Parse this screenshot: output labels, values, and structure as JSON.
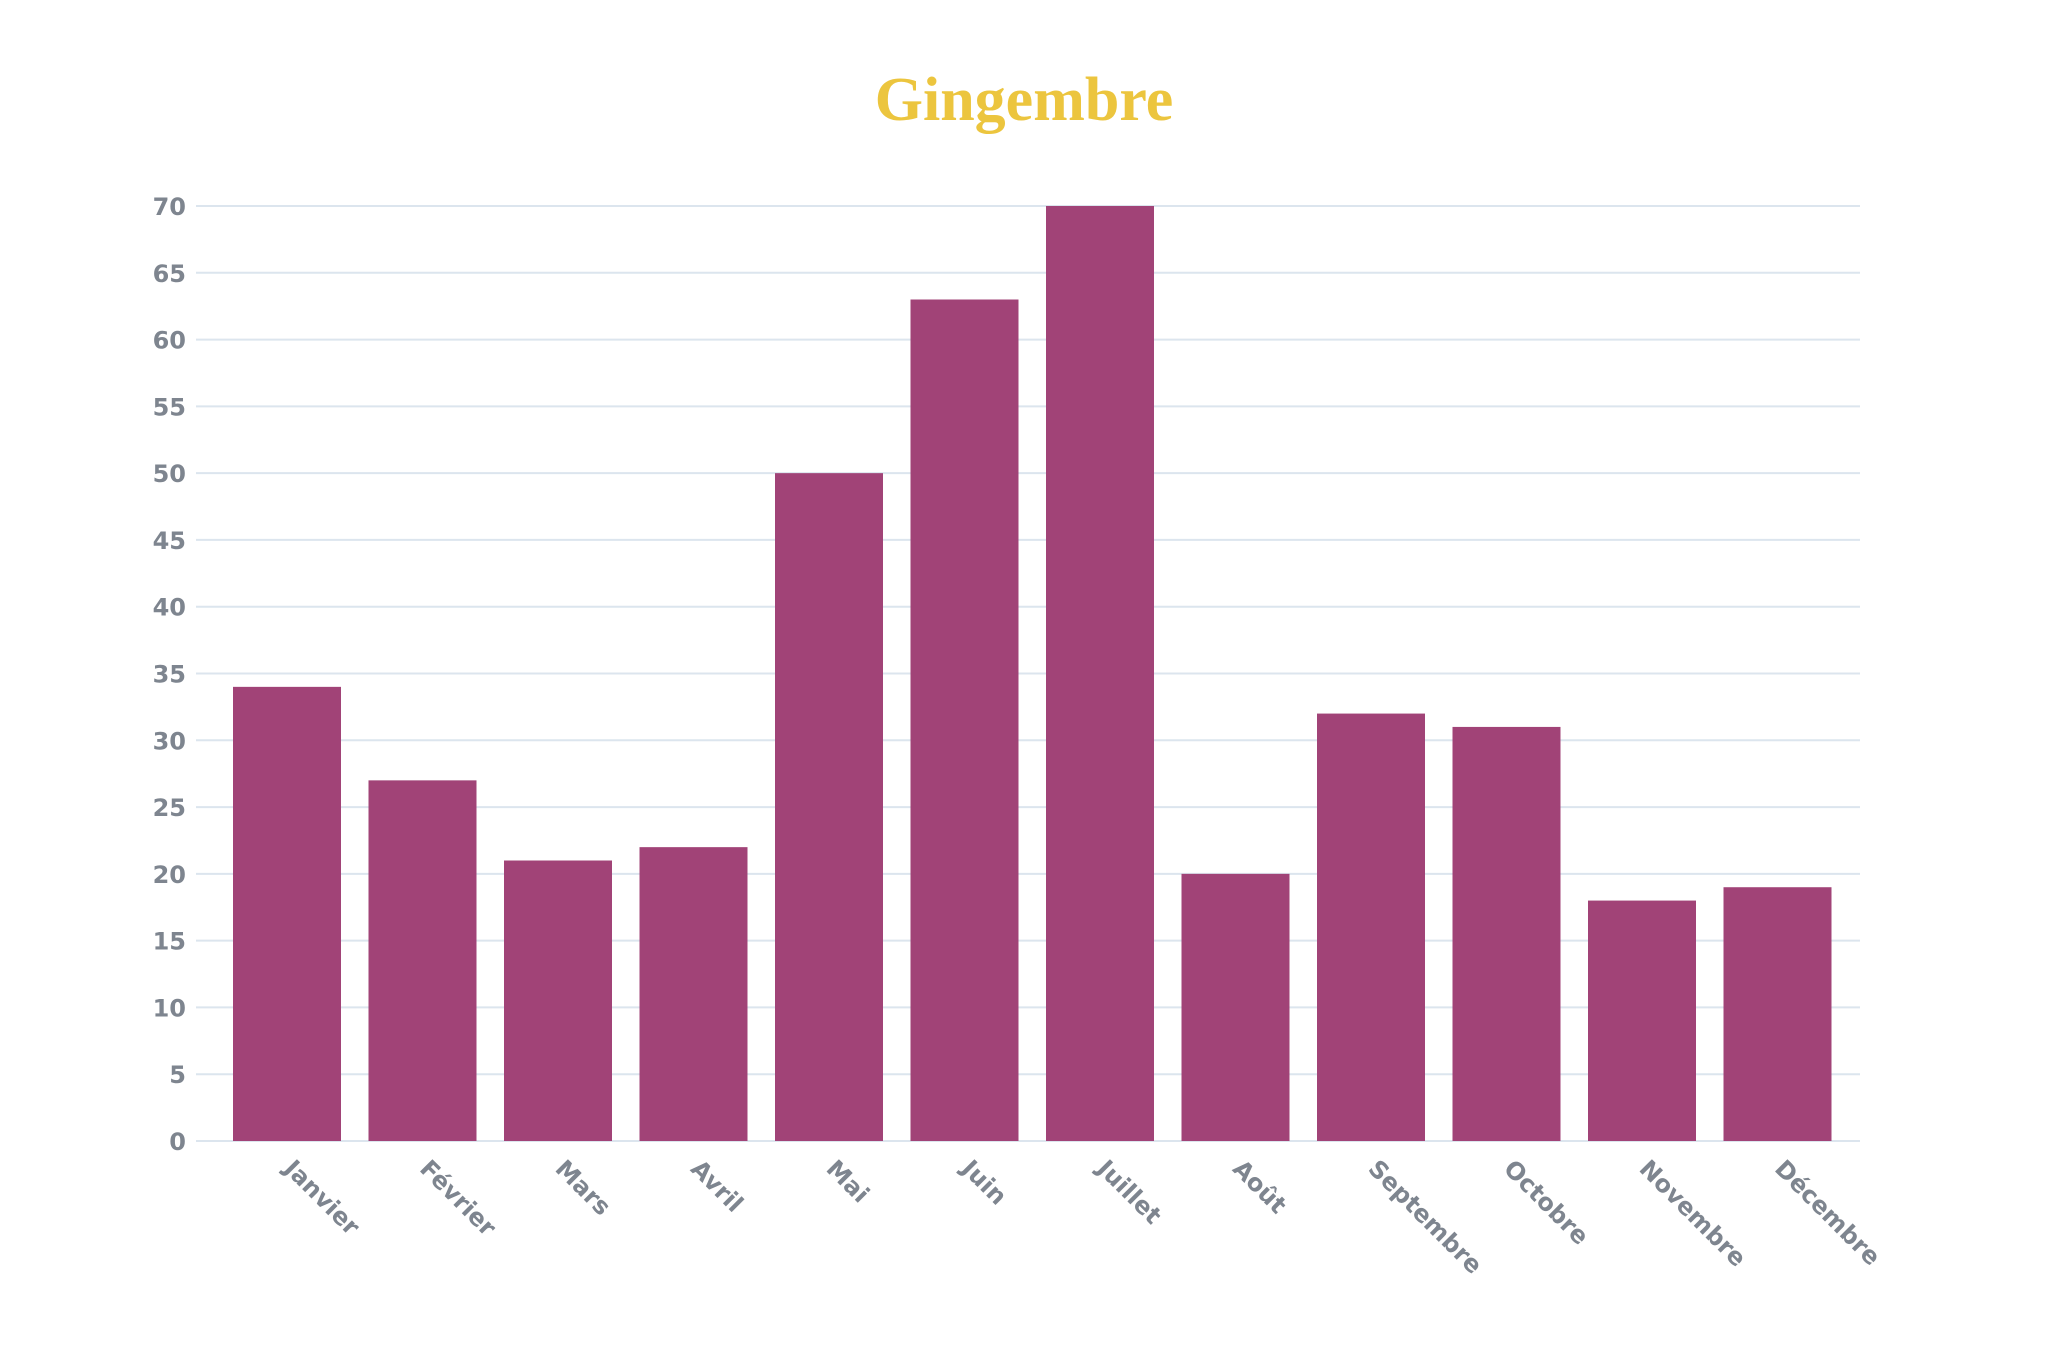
{
  "chart_data": {
    "type": "bar",
    "title": "Gingembre",
    "xlabel": "",
    "ylabel": "",
    "categories": [
      "Janvier",
      "Février",
      "Mars",
      "Avril",
      "Mai",
      "Juin",
      "Juillet",
      "Août",
      "Septembre",
      "Octobre",
      "Novembre",
      "Décembre"
    ],
    "values": [
      34,
      27,
      21,
      22,
      50,
      63,
      70,
      20,
      32,
      31,
      18,
      19
    ],
    "ylim": [
      0,
      70
    ],
    "yticks": [
      "0",
      "5",
      "10",
      "15",
      "20",
      "25",
      "30",
      "35",
      "40",
      "45",
      "50",
      "55",
      "60",
      "65",
      "70"
    ],
    "grid": true,
    "legend": "none",
    "colors": {
      "title": "#ECC53E",
      "bar": "#A14377",
      "grid": "#DCE5EE",
      "axis_text": "#7E858F"
    }
  }
}
